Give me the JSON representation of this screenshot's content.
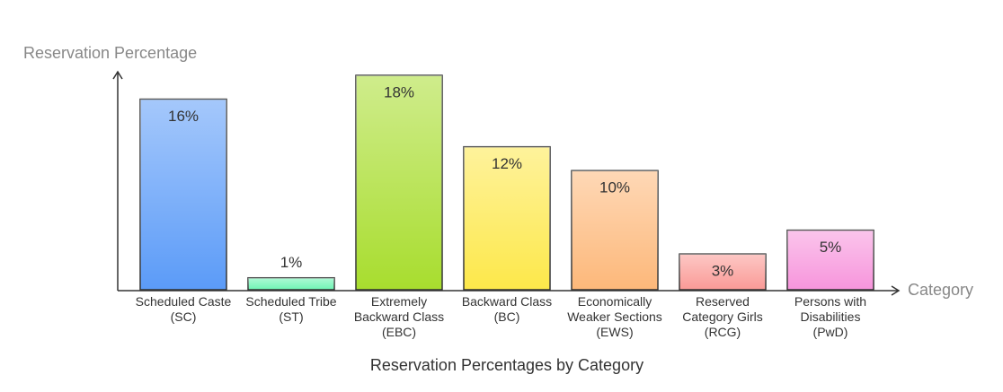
{
  "chart_data": {
    "type": "bar",
    "title": "Reservation Percentages by Category",
    "y_label": "Reservation Percentage",
    "x_label": "Category",
    "categories": [
      "Scheduled Caste\n(SC)",
      "Scheduled Tribe\n(ST)",
      "Extremely\nBackward Class\n(EBC)",
      "Backward Class\n(BC)",
      "Economically\nWeaker Sections\n(EWS)",
      "Reserved\nCategory Girls\n(RCG)",
      "Persons with\nDisabilities\n(PwD)"
    ],
    "values": [
      16,
      1,
      18,
      12,
      10,
      3,
      5
    ],
    "value_labels": [
      "16%",
      "1%",
      "18%",
      "12%",
      "10%",
      "3%",
      "5%"
    ],
    "colors": [
      "#5b9bf8",
      "#6ef5b4",
      "#a8dd2e",
      "#fde84a",
      "#fdb87a",
      "#fa9a96",
      "#f795dc"
    ],
    "ylim": [
      0,
      18
    ]
  }
}
